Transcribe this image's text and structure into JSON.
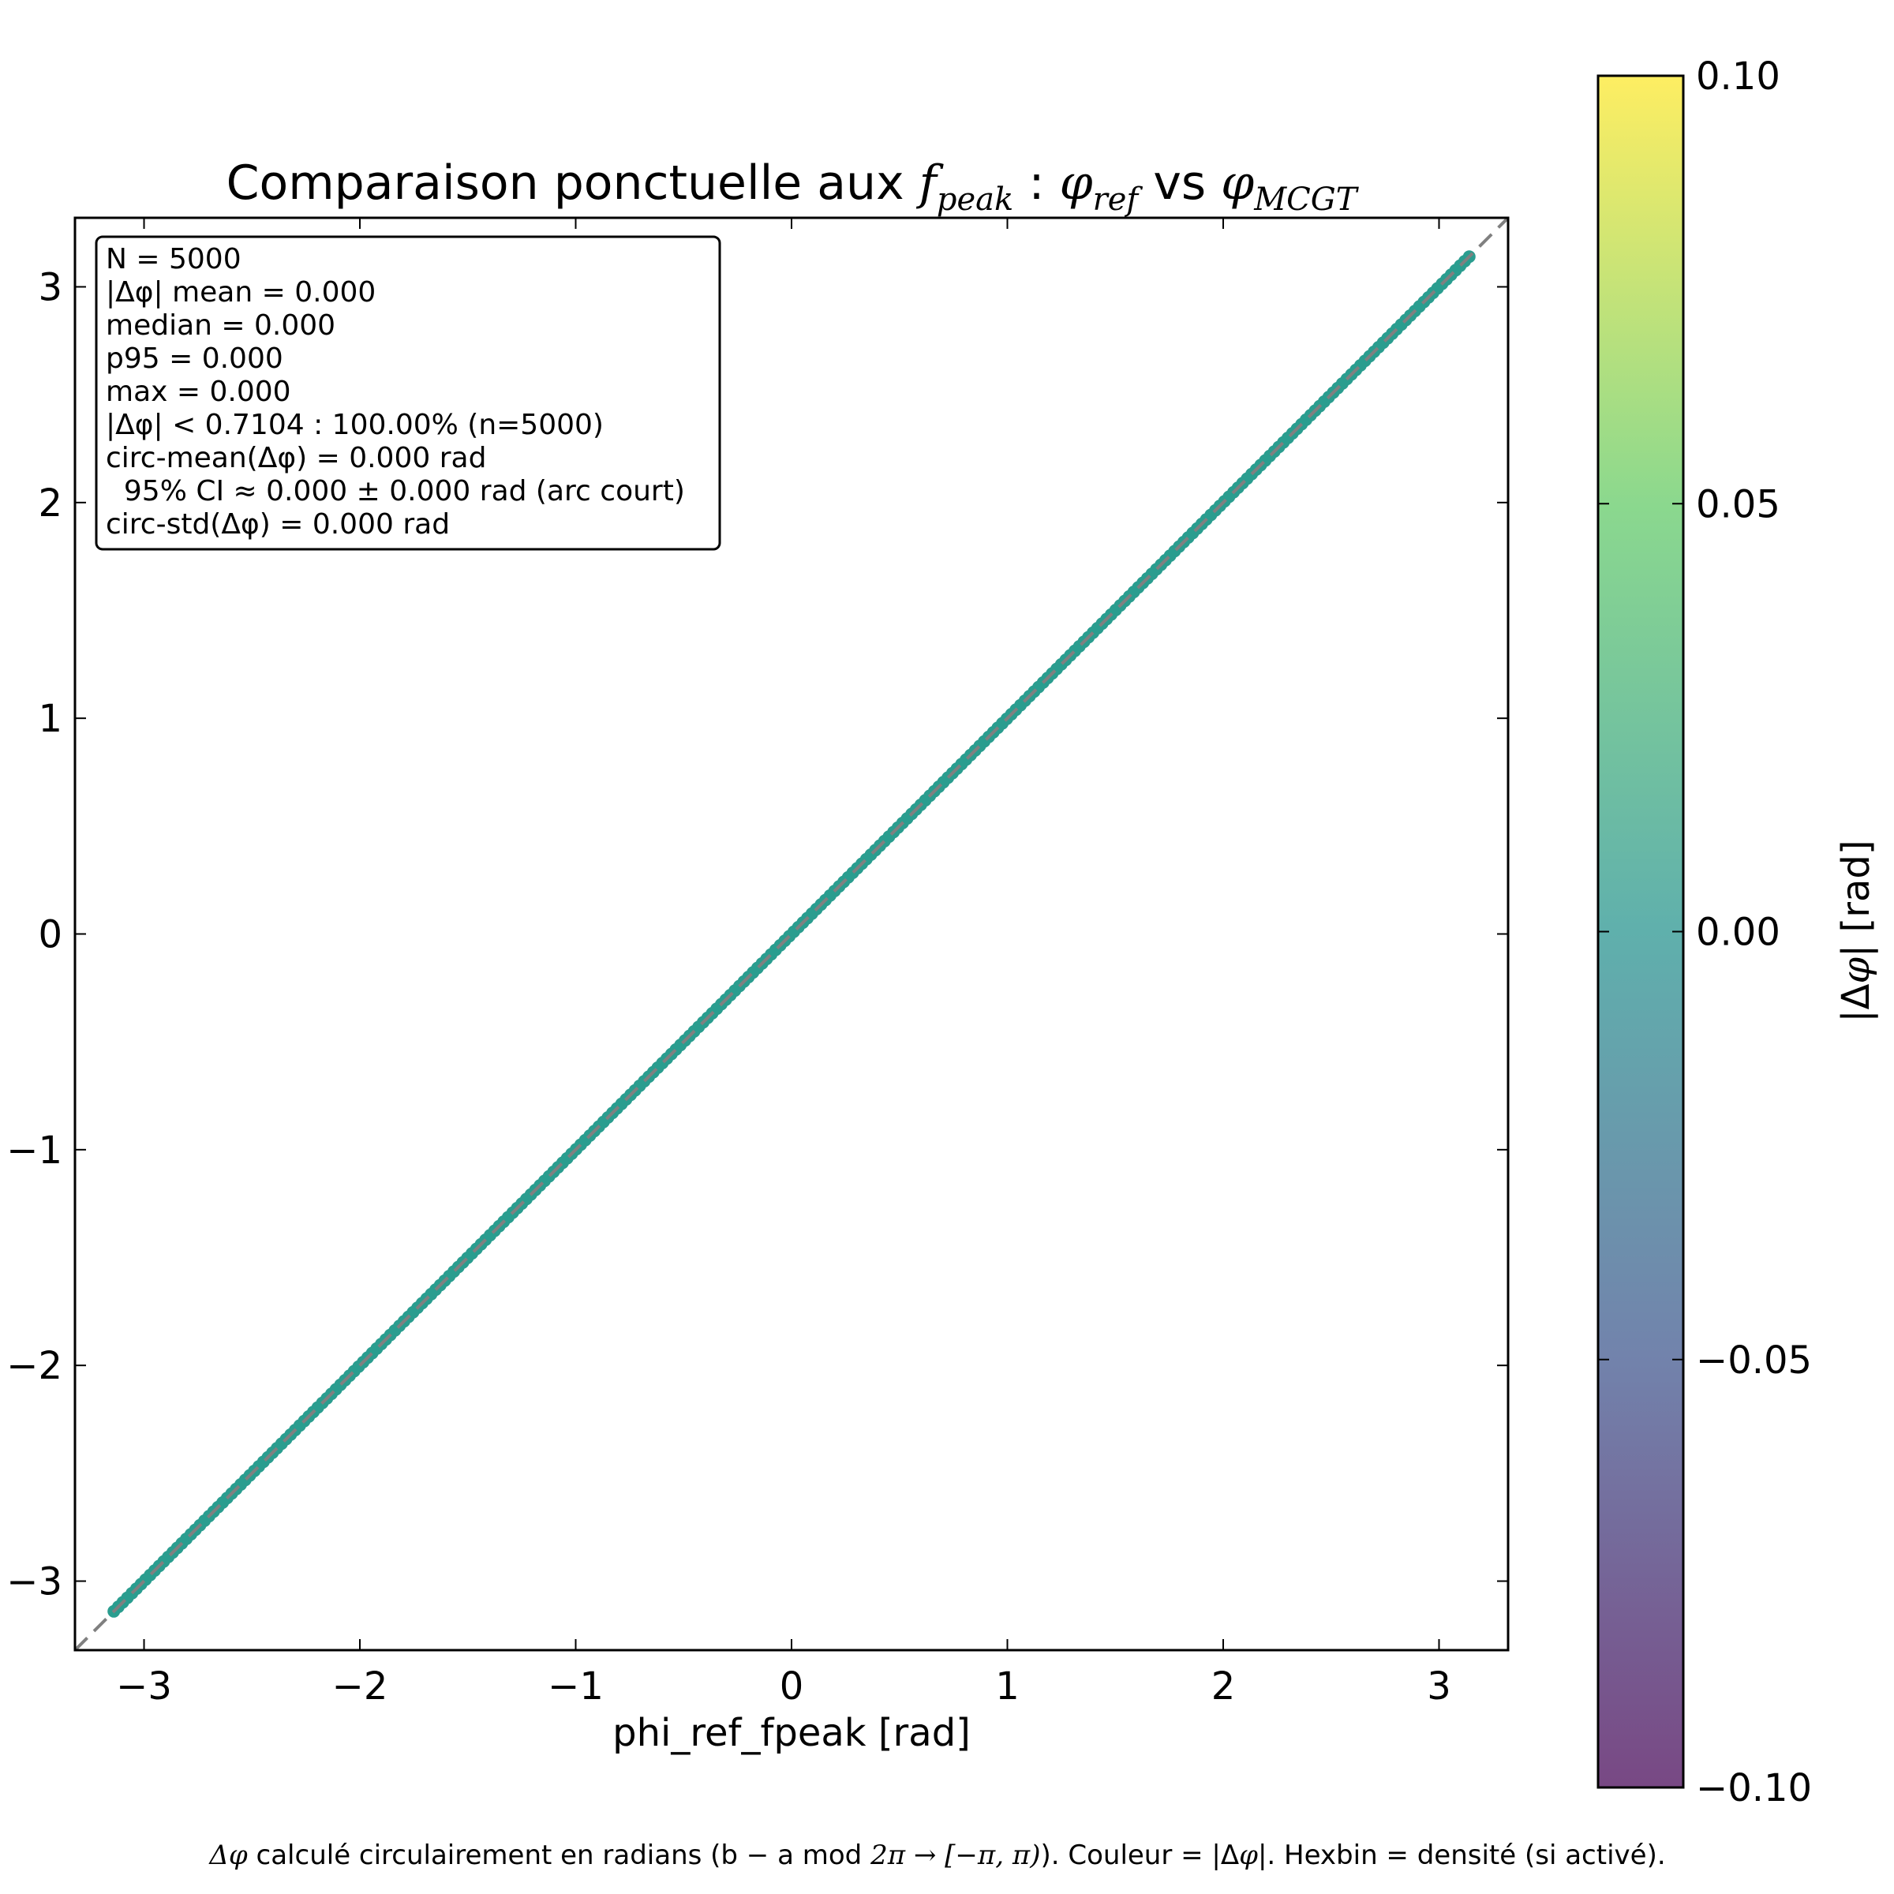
{
  "chart_data": {
    "type": "scatter",
    "title_parts": {
      "prefix": "Comparaison ponctuelle aux ",
      "f": "f",
      "f_sub": "peak",
      "sep": " : ",
      "phi1": "φ",
      "phi1_sub": "ref",
      "vs": " vs ",
      "phi2": "φ",
      "phi2_sub": "MCGT"
    },
    "xlabel": "phi_ref_fpeak [rad]",
    "ylabel": "",
    "xlim": [
      -3.32,
      3.32
    ],
    "ylim": [
      -3.32,
      3.32
    ],
    "xticks": [
      -3,
      -2,
      -1,
      0,
      1,
      2,
      3
    ],
    "xtick_labels": [
      "−3",
      "−2",
      "−1",
      "0",
      "1",
      "2",
      "3"
    ],
    "yticks": [
      -3,
      -2,
      -1,
      0,
      1,
      2,
      3
    ],
    "ytick_labels": [
      "−3",
      "−2",
      "−1",
      "0",
      "1",
      "2",
      "3"
    ],
    "grid": false,
    "reference_line": {
      "style": "dashed",
      "color": "#808080",
      "x": [
        -3.32,
        3.32
      ],
      "y": [
        -3.32,
        3.32
      ]
    },
    "series": [
      {
        "x": [
          -3.14,
          3.14
        ],
        "y": [
          -3.14,
          3.14
        ],
        "count": 5000,
        "color": "#2a9d8f",
        "abs_delta_phi": 0.0
      }
    ],
    "stats_box": [
      "N = 5000",
      "|Δφ| mean = 0.000",
      "median = 0.000",
      "p95 = 0.000",
      "max = 0.000",
      "|Δφ| < 0.7104 : 100.00% (n=5000)",
      "circ-mean(Δφ) = 0.000 rad",
      "  95% CI ≈ 0.000 ± 0.000 rad (arc court)",
      "circ-std(Δφ) = 0.000 rad"
    ],
    "stats_box_position": "upper-left",
    "colorbar": {
      "label_prefix": "|Δ",
      "label_phi": "φ",
      "label_suffix": "| [rad]",
      "range": [
        -0.1,
        0.1
      ],
      "ticks": [
        0.1,
        0.05,
        0.0,
        -0.05,
        -0.1
      ],
      "tick_labels": [
        "0.10",
        "0.05",
        "0.00",
        "−0.05",
        "−0.10"
      ],
      "colormap": "viridis",
      "colors": [
        "#440154",
        "#3b528b",
        "#21918c",
        "#5ec962",
        "#fde725"
      ]
    },
    "footnote_parts": {
      "a": "Δ",
      "b": "φ",
      "c": " calculé circulairement en radians (b − a mod ",
      "d": "2π → [−π, π)",
      "e": "). Couleur = |Δ",
      "f": "φ",
      "g": "|. Hexbin = densité (si activé)."
    }
  }
}
